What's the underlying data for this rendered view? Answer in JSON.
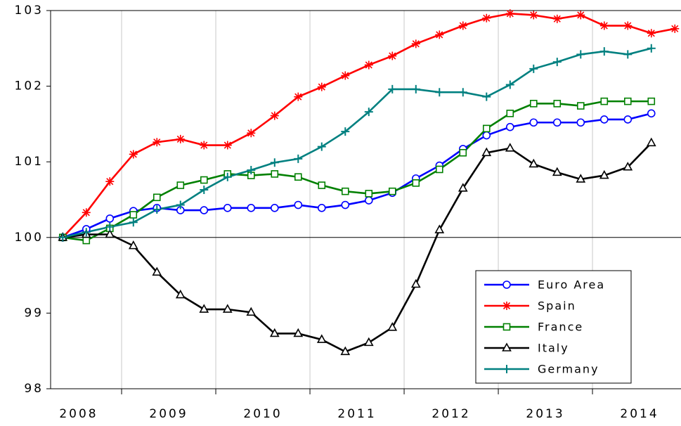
{
  "chart_data": {
    "type": "line",
    "xlim": [
      2008.246,
      2014.94
    ],
    "ylim": [
      98,
      103
    ],
    "xticks": [
      2008,
      2009,
      2010,
      2011,
      2012,
      2013,
      2014
    ],
    "yticks": [
      98,
      99,
      100,
      101,
      102,
      103
    ],
    "hline": 100,
    "grid": true,
    "legend": "lower right",
    "series": [
      {
        "name": "Euro Area",
        "color": "#0000ff",
        "marker": "circle",
        "x": [
          2008.375,
          2008.625,
          2008.875,
          2009.125,
          2009.375,
          2009.625,
          2009.875,
          2010.125,
          2010.375,
          2010.625,
          2010.875,
          2011.125,
          2011.375,
          2011.625,
          2011.875,
          2012.125,
          2012.375,
          2012.625,
          2012.875,
          2013.125,
          2013.375,
          2013.625,
          2013.875,
          2014.125,
          2014.375,
          2014.625
        ],
        "values": [
          100,
          100.11,
          100.25,
          100.35,
          100.39,
          100.36,
          100.36,
          100.39,
          100.39,
          100.39,
          100.43,
          100.39,
          100.43,
          100.49,
          100.59,
          100.78,
          100.95,
          101.17,
          101.35,
          101.46,
          101.52,
          101.52,
          101.52,
          101.56,
          101.56,
          101.64
        ]
      },
      {
        "name": "Spain",
        "color": "#ff0000",
        "marker": "star",
        "x": [
          2008.375,
          2008.625,
          2008.875,
          2009.125,
          2009.375,
          2009.625,
          2009.875,
          2010.125,
          2010.375,
          2010.625,
          2010.875,
          2011.125,
          2011.375,
          2011.625,
          2011.875,
          2012.125,
          2012.375,
          2012.625,
          2012.875,
          2013.125,
          2013.375,
          2013.625,
          2013.875,
          2014.125,
          2014.375,
          2014.625,
          2014.875
        ],
        "values": [
          100,
          100.33,
          100.74,
          101.1,
          101.26,
          101.3,
          101.22,
          101.22,
          101.38,
          101.61,
          101.86,
          101.99,
          102.14,
          102.28,
          102.4,
          102.56,
          102.68,
          102.8,
          102.9,
          102.96,
          102.94,
          102.89,
          102.94,
          102.8,
          102.8,
          102.7,
          102.76
        ]
      },
      {
        "name": "France",
        "color": "#008000",
        "marker": "square",
        "x": [
          2008.375,
          2008.625,
          2008.875,
          2009.125,
          2009.375,
          2009.625,
          2009.875,
          2010.125,
          2010.375,
          2010.625,
          2010.875,
          2011.125,
          2011.375,
          2011.625,
          2011.875,
          2012.125,
          2012.375,
          2012.625,
          2012.875,
          2013.125,
          2013.375,
          2013.625,
          2013.875,
          2014.125,
          2014.375,
          2014.625
        ],
        "values": [
          100,
          99.96,
          100.12,
          100.3,
          100.53,
          100.69,
          100.76,
          100.84,
          100.82,
          100.84,
          100.8,
          100.69,
          100.61,
          100.58,
          100.61,
          100.72,
          100.9,
          101.12,
          101.44,
          101.64,
          101.77,
          101.77,
          101.74,
          101.8,
          101.8,
          101.8
        ]
      },
      {
        "name": "Italy",
        "color": "#000000",
        "marker": "triangle",
        "x": [
          2008.375,
          2008.625,
          2008.875,
          2009.125,
          2009.375,
          2009.625,
          2009.875,
          2010.125,
          2010.375,
          2010.625,
          2010.875,
          2011.125,
          2011.375,
          2011.625,
          2011.875,
          2012.125,
          2012.375,
          2012.625,
          2012.875,
          2013.125,
          2013.375,
          2013.625,
          2013.875,
          2014.125,
          2014.375,
          2014.625
        ],
        "values": [
          100,
          100.04,
          100.04,
          99.89,
          99.54,
          99.24,
          99.05,
          99.05,
          99.01,
          98.73,
          98.73,
          98.65,
          98.49,
          98.61,
          98.81,
          99.38,
          100.1,
          100.65,
          101.12,
          101.18,
          100.97,
          100.86,
          100.77,
          100.82,
          100.93,
          101.25
        ]
      },
      {
        "name": "Germany",
        "color": "#008080",
        "marker": "plus",
        "x": [
          2008.375,
          2008.625,
          2008.875,
          2009.125,
          2009.375,
          2009.625,
          2009.875,
          2010.125,
          2010.375,
          2010.625,
          2010.875,
          2011.125,
          2011.375,
          2011.625,
          2011.875,
          2012.125,
          2012.375,
          2012.625,
          2012.875,
          2013.125,
          2013.375,
          2013.625,
          2013.875,
          2014.125,
          2014.375,
          2014.625
        ],
        "values": [
          100,
          100.07,
          100.14,
          100.2,
          100.37,
          100.43,
          100.63,
          100.8,
          100.89,
          100.99,
          101.04,
          101.2,
          101.4,
          101.66,
          101.96,
          101.96,
          101.92,
          101.92,
          101.86,
          102.02,
          102.23,
          102.32,
          102.42,
          102.46,
          102.42,
          102.5
        ]
      }
    ]
  }
}
